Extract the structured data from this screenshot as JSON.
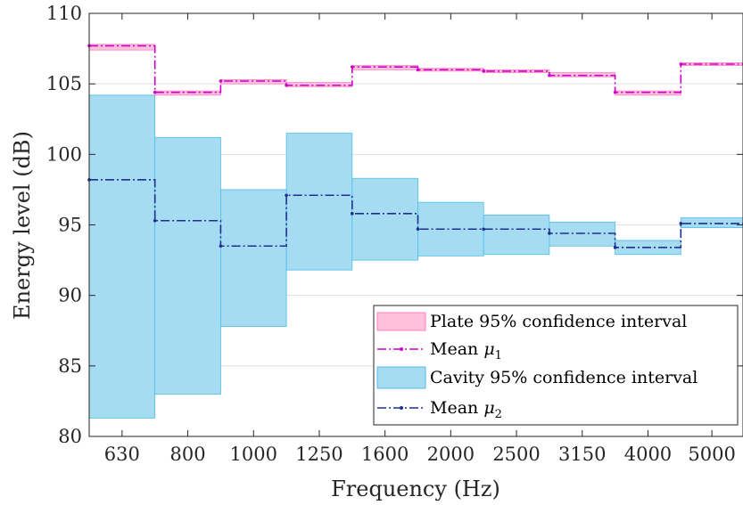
{
  "chart_data": {
    "type": "area",
    "xlabel": "Frequency (Hz)",
    "ylabel": "Energy level (dB)",
    "ylim": [
      80,
      110
    ],
    "yticks": [
      80,
      85,
      90,
      95,
      100,
      105,
      110
    ],
    "categories": [
      "630",
      "800",
      "1000",
      "1250",
      "1600",
      "2000",
      "2500",
      "3150",
      "4000",
      "5000"
    ],
    "grid": true,
    "legend_position": "bottom-right",
    "series": [
      {
        "name": "Plate 95% confidence interval",
        "kind": "band",
        "color": "#ffc0dc",
        "lower": [
          107.4,
          104.2,
          105.0,
          104.8,
          106.0,
          105.9,
          105.8,
          105.5,
          104.2,
          106.3
        ],
        "upper": [
          107.8,
          104.5,
          105.3,
          105.1,
          106.3,
          106.1,
          106.0,
          105.8,
          104.5,
          106.5
        ]
      },
      {
        "name": "Mean μ1",
        "kind": "line",
        "color": "#cc00cc",
        "values": [
          107.7,
          104.4,
          105.2,
          104.9,
          106.2,
          106.0,
          105.9,
          105.6,
          104.4,
          106.4
        ]
      },
      {
        "name": "Cavity 95% confidence interval",
        "kind": "band",
        "color": "#a6dcf2",
        "lower": [
          81.3,
          83.0,
          87.8,
          91.8,
          92.5,
          92.8,
          92.9,
          93.5,
          92.9,
          94.8
        ],
        "upper": [
          104.2,
          101.2,
          97.5,
          101.5,
          98.3,
          96.6,
          95.7,
          95.2,
          93.9,
          95.5
        ]
      },
      {
        "name": "Mean μ2",
        "kind": "line",
        "color": "#1f2f8f",
        "values": [
          98.2,
          95.3,
          93.5,
          97.1,
          95.8,
          94.7,
          94.7,
          94.4,
          93.4,
          95.1
        ]
      }
    ]
  },
  "legend": {
    "plate_label": "Plate 95% confidence interval",
    "mean1_prefix": "Mean ",
    "mean1_symbol": "μ",
    "mean1_sub": "1",
    "cavity_label": "Cavity 95% confidence interval",
    "mean2_prefix": "Mean ",
    "mean2_symbol": "μ",
    "mean2_sub": "2"
  }
}
